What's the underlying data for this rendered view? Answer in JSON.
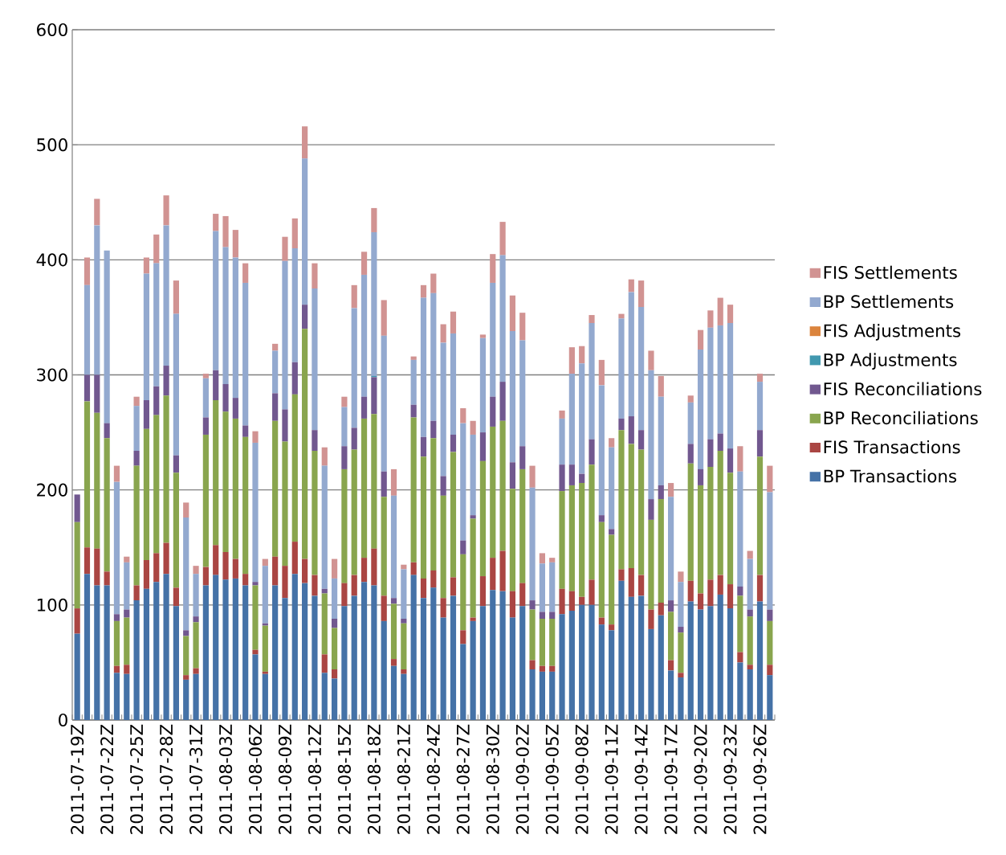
{
  "chart_data": {
    "type": "bar",
    "stacked": true,
    "grid": "y",
    "legend": "right",
    "categories": [
      "2011-07-19Z",
      null,
      null,
      "2011-07-22Z",
      null,
      null,
      "2011-07-25Z",
      null,
      null,
      "2011-07-28Z",
      null,
      null,
      "2011-07-31Z",
      null,
      null,
      "2011-08-03Z",
      null,
      null,
      "2011-08-06Z",
      null,
      null,
      "2011-08-09Z",
      null,
      null,
      "2011-08-12Z",
      null,
      null,
      "2011-08-15Z",
      null,
      null,
      "2011-08-18Z",
      null,
      null,
      "2011-08-21Z",
      null,
      null,
      "2011-08-24Z",
      null,
      null,
      "2011-08-27Z",
      null,
      null,
      "2011-08-30Z",
      null,
      null,
      "2011-09-02Z",
      null,
      null,
      "2011-09-05Z",
      null,
      null,
      "2011-09-08Z",
      null,
      null,
      "2011-09-11Z",
      null,
      null,
      "2011-09-14Z",
      null,
      null,
      "2011-09-17Z",
      null,
      null,
      "2011-09-20Z",
      null,
      null,
      "2011-09-23Z",
      null,
      null,
      "2011-09-26Z",
      null
    ],
    "ylim": [
      0,
      600
    ],
    "yticks": [
      0,
      100,
      200,
      300,
      400,
      500,
      600
    ],
    "series": [
      {
        "name": "BP Transactions",
        "color": "#4572a7",
        "values": [
          75,
          127,
          117,
          117,
          41,
          40,
          104,
          114,
          120,
          127,
          99,
          35,
          40,
          117,
          126,
          122,
          123,
          117,
          57,
          40,
          117,
          106,
          127,
          119,
          108,
          41,
          36,
          99,
          108,
          120,
          117,
          86,
          47,
          40,
          126,
          106,
          115,
          89,
          108,
          66,
          86,
          99,
          113,
          112,
          89,
          99,
          44,
          42,
          42,
          92,
          95,
          100,
          100,
          83,
          78,
          121,
          107,
          108,
          79,
          91,
          43,
          37,
          103,
          96,
          99,
          109,
          97,
          50,
          44,
          103,
          39
        ]
      },
      {
        "name": "FIS Transactions",
        "color": "#aa4643",
        "values": [
          22,
          23,
          32,
          12,
          6,
          8,
          13,
          25,
          25,
          27,
          16,
          4,
          5,
          16,
          26,
          24,
          17,
          10,
          4,
          2,
          25,
          28,
          28,
          21,
          18,
          16,
          8,
          20,
          18,
          21,
          32,
          22,
          6,
          4,
          11,
          17,
          15,
          17,
          16,
          12,
          3,
          26,
          28,
          35,
          23,
          20,
          8,
          5,
          5,
          22,
          17,
          7,
          22,
          6,
          5,
          10,
          25,
          18,
          17,
          11,
          9,
          4,
          18,
          14,
          23,
          17,
          21,
          9,
          4,
          23,
          9
        ]
      },
      {
        "name": "BP Reconciliations",
        "color": "#89a54e",
        "values": [
          75,
          127,
          118,
          116,
          39,
          41,
          104,
          114,
          120,
          128,
          100,
          34,
          40,
          115,
          126,
          122,
          122,
          119,
          56,
          40,
          118,
          108,
          128,
          200,
          108,
          53,
          36,
          99,
          109,
          121,
          117,
          86,
          48,
          40,
          126,
          106,
          115,
          89,
          109,
          66,
          86,
          100,
          114,
          113,
          89,
          99,
          44,
          41,
          41,
          85,
          92,
          99,
          100,
          83,
          78,
          121,
          108,
          109,
          78,
          90,
          42,
          35,
          102,
          94,
          98,
          108,
          97,
          49,
          42,
          103,
          38
        ]
      },
      {
        "name": "FIS Reconciliations",
        "color": "#71588f",
        "values": [
          24,
          23,
          33,
          13,
          6,
          7,
          13,
          25,
          25,
          26,
          15,
          5,
          5,
          15,
          26,
          24,
          18,
          10,
          3,
          2,
          24,
          28,
          28,
          21,
          18,
          4,
          8,
          20,
          19,
          19,
          32,
          22,
          5,
          4,
          11,
          17,
          15,
          17,
          15,
          12,
          3,
          25,
          26,
          34,
          23,
          20,
          8,
          6,
          6,
          23,
          18,
          8,
          22,
          6,
          5,
          10,
          24,
          17,
          18,
          12,
          10,
          5,
          17,
          14,
          24,
          15,
          21,
          8,
          6,
          23,
          10
        ]
      },
      {
        "name": "BP Adjustments",
        "color": "#4198af",
        "values": [
          0,
          0,
          0,
          0,
          0,
          0,
          0,
          0,
          0,
          0,
          0,
          0,
          0,
          0,
          0,
          0,
          0,
          0,
          0,
          0,
          0,
          0,
          0,
          0,
          0,
          0,
          0,
          0,
          0,
          0,
          1,
          0,
          0,
          0,
          0,
          0,
          0,
          0,
          0,
          0,
          0,
          0,
          0,
          0,
          0,
          0,
          0,
          0,
          0,
          0,
          0,
          0,
          0,
          0,
          0,
          0,
          0,
          0,
          0,
          0,
          0,
          0,
          0,
          0,
          0,
          0,
          0,
          0,
          0,
          0,
          0
        ]
      },
      {
        "name": "FIS Adjustments",
        "color": "#db843d",
        "values": [
          0,
          0,
          0,
          0,
          0,
          0,
          0,
          0,
          0,
          0,
          0,
          0,
          0,
          0,
          0,
          0,
          0,
          0,
          0,
          0,
          0,
          0,
          0,
          0,
          0,
          0,
          0,
          0,
          0,
          0,
          0,
          0,
          0,
          0,
          0,
          0,
          0,
          0,
          0,
          0,
          0,
          0,
          0,
          0,
          0,
          0,
          0,
          0,
          0,
          0,
          0,
          0,
          0,
          0,
          0,
          0,
          0,
          0,
          0,
          0,
          0,
          0,
          0,
          0,
          0,
          0,
          0,
          0,
          0,
          0,
          0
        ]
      },
      {
        "name": "BP Settlements",
        "color": "#93a9cf",
        "values": [
          0,
          78,
          130,
          150,
          115,
          41,
          39,
          110,
          107,
          122,
          123,
          98,
          37,
          34,
          121,
          119,
          122,
          124,
          121,
          50,
          37,
          129,
          99,
          127,
          123,
          107,
          35,
          34,
          104,
          106,
          125,
          118,
          89,
          43,
          39,
          121,
          111,
          116,
          88,
          102,
          70,
          82,
          99,
          110,
          114,
          92,
          98,
          42,
          43,
          40,
          79,
          96,
          101,
          113,
          71,
          87,
          108,
          107,
          112,
          77,
          90,
          39,
          36,
          104,
          97,
          94,
          109,
          100,
          44,
          42,
          102
        ]
      },
      {
        "name": "FIS Settlements",
        "color": "#d19392",
        "values": [
          0,
          24,
          23,
          0,
          14,
          5,
          8,
          14,
          25,
          26,
          29,
          13,
          7,
          4,
          15,
          27,
          24,
          17,
          10,
          6,
          6,
          21,
          26,
          28,
          22,
          16,
          17,
          9,
          20,
          20,
          21,
          31,
          23,
          4,
          3,
          11,
          17,
          16,
          19,
          13,
          12,
          3,
          25,
          29,
          31,
          24,
          19,
          9,
          4,
          7,
          23,
          15,
          7,
          22,
          8,
          4,
          11,
          23,
          17,
          18,
          12,
          9,
          6,
          17,
          15,
          24,
          16,
          22,
          7,
          7,
          23
        ]
      }
    ]
  }
}
